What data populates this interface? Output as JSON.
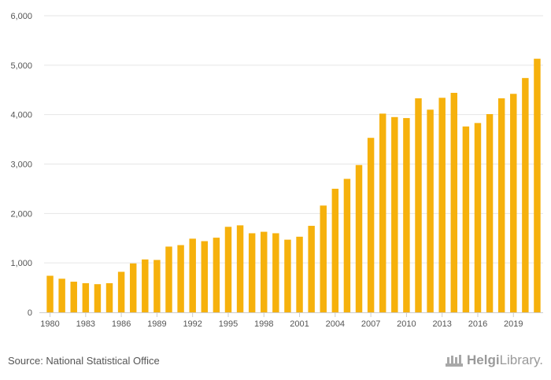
{
  "chart_data": {
    "type": "bar",
    "title": "",
    "xlabel": "",
    "ylabel": "",
    "ylim": [
      0,
      6000
    ],
    "yticks": [
      0,
      1000,
      2000,
      3000,
      4000,
      5000,
      6000
    ],
    "ytick_labels": [
      "0",
      "1,000",
      "2,000",
      "3,000",
      "4,000",
      "5,000",
      "6,000"
    ],
    "categories": [
      "1980",
      "1981",
      "1982",
      "1983",
      "1984",
      "1985",
      "1986",
      "1987",
      "1988",
      "1989",
      "1990",
      "1991",
      "1992",
      "1993",
      "1994",
      "1995",
      "1996",
      "1997",
      "1998",
      "1999",
      "2000",
      "2001",
      "2002",
      "2003",
      "2004",
      "2005",
      "2006",
      "2007",
      "2008",
      "2009",
      "2010",
      "2011",
      "2012",
      "2013",
      "2014",
      "2015",
      "2016",
      "2017",
      "2018",
      "2019",
      "2020",
      "2021"
    ],
    "xtick_labels": [
      "1980",
      "1983",
      "1986",
      "1989",
      "1992",
      "1995",
      "1998",
      "2001",
      "2004",
      "2007",
      "2010",
      "2013",
      "2016",
      "2019"
    ],
    "values": [
      740,
      680,
      620,
      590,
      570,
      590,
      820,
      990,
      1070,
      1060,
      1330,
      1360,
      1490,
      1440,
      1510,
      1730,
      1760,
      1600,
      1630,
      1600,
      1470,
      1530,
      1750,
      2160,
      2500,
      2700,
      2980,
      3530,
      4020,
      3950,
      3930,
      4330,
      4100,
      4340,
      4440,
      3760,
      3830,
      4010,
      4330,
      4420,
      4740,
      5130
    ],
    "bar_color": "#f6b10c",
    "grid": true,
    "legend": "none"
  },
  "footer": {
    "source": "Source: National Statistical Office",
    "logo_brand": "Helgi",
    "logo_suffix": "Library."
  }
}
